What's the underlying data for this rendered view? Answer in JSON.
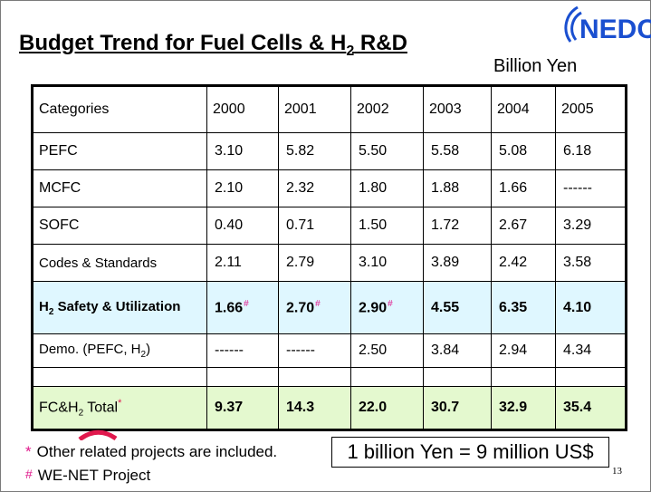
{
  "logo": {
    "text": "NEDO",
    "color": "#1a4fd0"
  },
  "title": {
    "main": "Budget Trend for Fuel Cells & H",
    "sub": "2",
    "rest": " R&D"
  },
  "unit": "Billion Yen",
  "table": {
    "headers": [
      "Categories",
      "2000",
      "2001",
      "2002",
      "2003",
      "2004",
      "2005"
    ],
    "rows": [
      {
        "label": "PEFC",
        "values": [
          "3.10",
          "5.82",
          "5.50",
          "5.58",
          "5.08",
          "6.18"
        ]
      },
      {
        "label": "MCFC",
        "values": [
          "2.10",
          "2.32",
          "1.80",
          "1.88",
          "1.66",
          "------"
        ]
      },
      {
        "label": "SOFC",
        "values": [
          "0.40",
          "0.71",
          "1.50",
          "1.72",
          "2.67",
          "3.29"
        ]
      },
      {
        "label": "Codes & Standards",
        "values": [
          "2.11",
          "2.79",
          "3.10",
          "3.89",
          "2.42",
          "3.58"
        ]
      }
    ],
    "safety": {
      "label_main": "H",
      "label_sub": "2",
      "label_rest": " Safety & Utilization",
      "values": [
        "1.66",
        "2.70",
        "2.90",
        "4.55",
        "6.35",
        "4.10"
      ],
      "mark": "#",
      "bg_color": "#dff7ff"
    },
    "demo": {
      "label_main": "Demo. (PEFC, H",
      "label_sub": "2",
      "label_rest": ")",
      "values": [
        "------",
        "------",
        "2.50",
        "3.84",
        "2.94",
        "4.34"
      ]
    },
    "total": {
      "label_main": "FC&H",
      "label_sub": "2",
      "label_rest": " Total",
      "mark": "*",
      "values": [
        "9.37",
        "14.3",
        "22.0",
        "30.7",
        "32.9",
        "35.4"
      ],
      "bg_color": "#e4f9cf"
    }
  },
  "footnotes": [
    {
      "symbol": "*",
      "text": "Other related projects are included."
    },
    {
      "symbol": "#",
      "text": "WE-NET Project"
    }
  ],
  "conversion": "1 billion Yen = 9 million US$",
  "page_number": "13",
  "accent_color": "#e01a8c"
}
